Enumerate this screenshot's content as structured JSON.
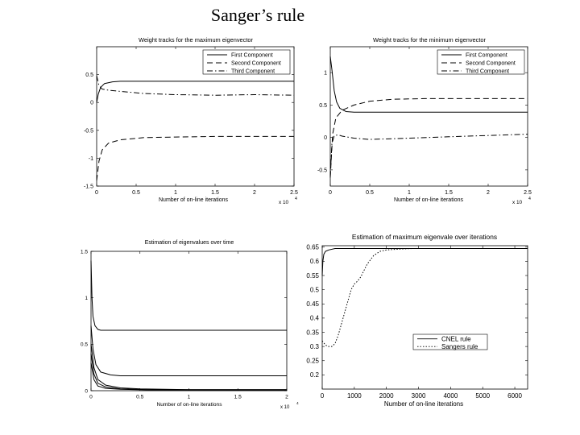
{
  "slide": {
    "title": "Sanger’s rule"
  },
  "chart_data": [
    {
      "id": "c1",
      "type": "line",
      "title": "Weight tracks for the maximum eigenvector",
      "xlabel": "Number of on-line iterations",
      "ylabel": "",
      "xlim": [
        0,
        25000
      ],
      "ylim": [
        -1.5,
        1
      ],
      "xticks": [
        0,
        5000,
        10000,
        15000,
        20000,
        25000
      ],
      "xtick_labels": [
        "0",
        "0.5",
        "1",
        "1.5",
        "2",
        "2.5"
      ],
      "yticks": [
        -1.5,
        -1,
        -0.5,
        0,
        0.5
      ],
      "ytick_labels": [
        "-1.5",
        "-1",
        "-0.5",
        "0",
        "0.5"
      ],
      "x_multiplier": "x 10",
      "x_multiplier_exp": "4",
      "legend_position": "top-right",
      "grid": false,
      "series": [
        {
          "name": "First Component",
          "style": "solid",
          "x": [
            0,
            200,
            500,
            1000,
            2000,
            3000,
            5000,
            10000,
            25000
          ],
          "y": [
            0,
            0.15,
            0.27,
            0.34,
            0.37,
            0.38,
            0.38,
            0.38,
            0.38
          ]
        },
        {
          "name": "Second Component",
          "style": "dashed",
          "x": [
            0,
            300,
            700,
            1500,
            3000,
            6000,
            10000,
            15000,
            25000
          ],
          "y": [
            -1.4,
            -1.05,
            -0.85,
            -0.73,
            -0.67,
            -0.63,
            -0.62,
            -0.61,
            -0.61
          ]
        },
        {
          "name": "Third Component",
          "style": "dashdot",
          "x": [
            0,
            300,
            700,
            1500,
            3000,
            6000,
            10000,
            15000,
            20000,
            25000
          ],
          "y": [
            0.48,
            0.3,
            0.24,
            0.22,
            0.2,
            0.16,
            0.14,
            0.13,
            0.14,
            0.13
          ]
        }
      ]
    },
    {
      "id": "c2",
      "type": "line",
      "title": "Weight tracks for the minimum eigenvector",
      "xlabel": "Number of on-line iterations",
      "ylabel": "",
      "xlim": [
        0,
        25000
      ],
      "ylim": [
        -0.75,
        1.4
      ],
      "xticks": [
        0,
        5000,
        10000,
        15000,
        20000,
        25000
      ],
      "xtick_labels": [
        "0",
        "0.5",
        "1",
        "1.5",
        "2",
        "2.5"
      ],
      "yticks": [
        -0.5,
        0,
        0.5,
        1
      ],
      "ytick_labels": [
        "-0.5",
        "0",
        "0.5",
        "1"
      ],
      "x_multiplier": "x 10",
      "x_multiplier_exp": "4",
      "legend_position": "top-right",
      "grid": false,
      "series": [
        {
          "name": "First Component",
          "style": "solid",
          "x": [
            0,
            200,
            500,
            800,
            1200,
            2000,
            3000,
            5000,
            25000
          ],
          "y": [
            1.25,
            1.05,
            0.72,
            0.55,
            0.45,
            0.4,
            0.39,
            0.39,
            0.39
          ]
        },
        {
          "name": "Second Component",
          "style": "dashed",
          "x": [
            0,
            300,
            700,
            1500,
            3000,
            5000,
            8000,
            12000,
            25000
          ],
          "y": [
            -0.62,
            0.05,
            0.3,
            0.42,
            0.5,
            0.56,
            0.59,
            0.6,
            0.6
          ]
        },
        {
          "name": "Third Component",
          "style": "dashdot",
          "x": [
            0,
            200,
            500,
            1000,
            1500,
            3000,
            5000,
            10000,
            15000,
            20000,
            25000
          ],
          "y": [
            -0.6,
            -0.1,
            0.03,
            0.04,
            0.02,
            -0.01,
            -0.03,
            -0.01,
            0.01,
            0.03,
            0.05
          ]
        }
      ]
    },
    {
      "id": "c3",
      "type": "line",
      "title": "Estimation of eigenvalues over time",
      "xlabel": "Number of on-line iterations",
      "ylabel": "",
      "xlim": [
        0,
        20000
      ],
      "ylim": [
        0,
        1.5
      ],
      "xticks": [
        0,
        5000,
        10000,
        15000,
        20000
      ],
      "xtick_labels": [
        "0",
        "0.5",
        "1",
        "1.5",
        "2"
      ],
      "yticks": [
        0,
        0.5,
        1,
        1.5
      ],
      "ytick_labels": [
        "0",
        "0.5",
        "1",
        "1.5"
      ],
      "x_multiplier": "x 10",
      "x_multiplier_exp": "4",
      "legend_position": "none",
      "grid": false,
      "series": [
        {
          "style": "solid",
          "x": [
            0,
            100,
            200,
            400,
            700,
            1000,
            20000
          ],
          "y": [
            1.4,
            1.0,
            0.8,
            0.7,
            0.66,
            0.65,
            0.65
          ]
        },
        {
          "style": "solid",
          "x": [
            0,
            200,
            500,
            1000,
            2000,
            3000,
            5000,
            20000
          ],
          "y": [
            0.7,
            0.45,
            0.28,
            0.2,
            0.17,
            0.16,
            0.16,
            0.16
          ]
        },
        {
          "style": "solid",
          "x": [
            0,
            300,
            700,
            1500,
            3000,
            5000,
            10000,
            20000
          ],
          "y": [
            0.5,
            0.25,
            0.12,
            0.06,
            0.03,
            0.02,
            0.01,
            0.01
          ]
        },
        {
          "style": "solid",
          "x": [
            0,
            300,
            700,
            1500,
            3000,
            6000,
            20000
          ],
          "y": [
            0.4,
            0.18,
            0.08,
            0.04,
            0.02,
            0.01,
            0.01
          ]
        },
        {
          "style": "solid",
          "x": [
            0,
            300,
            700,
            1500,
            3000,
            6000,
            20000
          ],
          "y": [
            0.3,
            0.12,
            0.05,
            0.025,
            0.015,
            0.008,
            0.005
          ]
        }
      ]
    },
    {
      "id": "c4",
      "type": "line",
      "title": "Estimation of maximum eigenvale over iterations",
      "xlabel": "Number of on-line iterations",
      "ylabel": "",
      "xlim": [
        0,
        6400
      ],
      "ylim": [
        0.15,
        0.655
      ],
      "xticks": [
        0,
        1000,
        2000,
        3000,
        4000,
        5000,
        6000
      ],
      "xtick_labels": [
        "0",
        "1000",
        "2000",
        "3000",
        "4000",
        "5000",
        "6000"
      ],
      "yticks": [
        0.2,
        0.25,
        0.3,
        0.35,
        0.4,
        0.45,
        0.5,
        0.55,
        0.6,
        0.65
      ],
      "ytick_labels": [
        "0.2",
        "0.25",
        "0.3",
        "0.35",
        "0.4",
        "0.45",
        "0.5",
        "0.55",
        "0.6",
        "0.65"
      ],
      "legend_position": "lower-right",
      "grid": false,
      "series": [
        {
          "name": "CNEL rule",
          "style": "solid",
          "x": [
            0,
            20,
            50,
            100,
            200,
            400,
            6400
          ],
          "y": [
            0.55,
            0.6,
            0.625,
            0.635,
            0.64,
            0.645,
            0.645
          ]
        },
        {
          "name": "Sangers rule",
          "style": "dotted",
          "x": [
            0,
            100,
            200,
            300,
            400,
            500,
            700,
            900,
            1000,
            1100,
            1200,
            1400,
            1600,
            1800,
            2000,
            2400,
            2800
          ],
          "y": [
            0.32,
            0.305,
            0.3,
            0.3,
            0.31,
            0.34,
            0.42,
            0.5,
            0.52,
            0.53,
            0.545,
            0.59,
            0.62,
            0.635,
            0.64,
            0.643,
            0.645
          ]
        }
      ]
    }
  ]
}
